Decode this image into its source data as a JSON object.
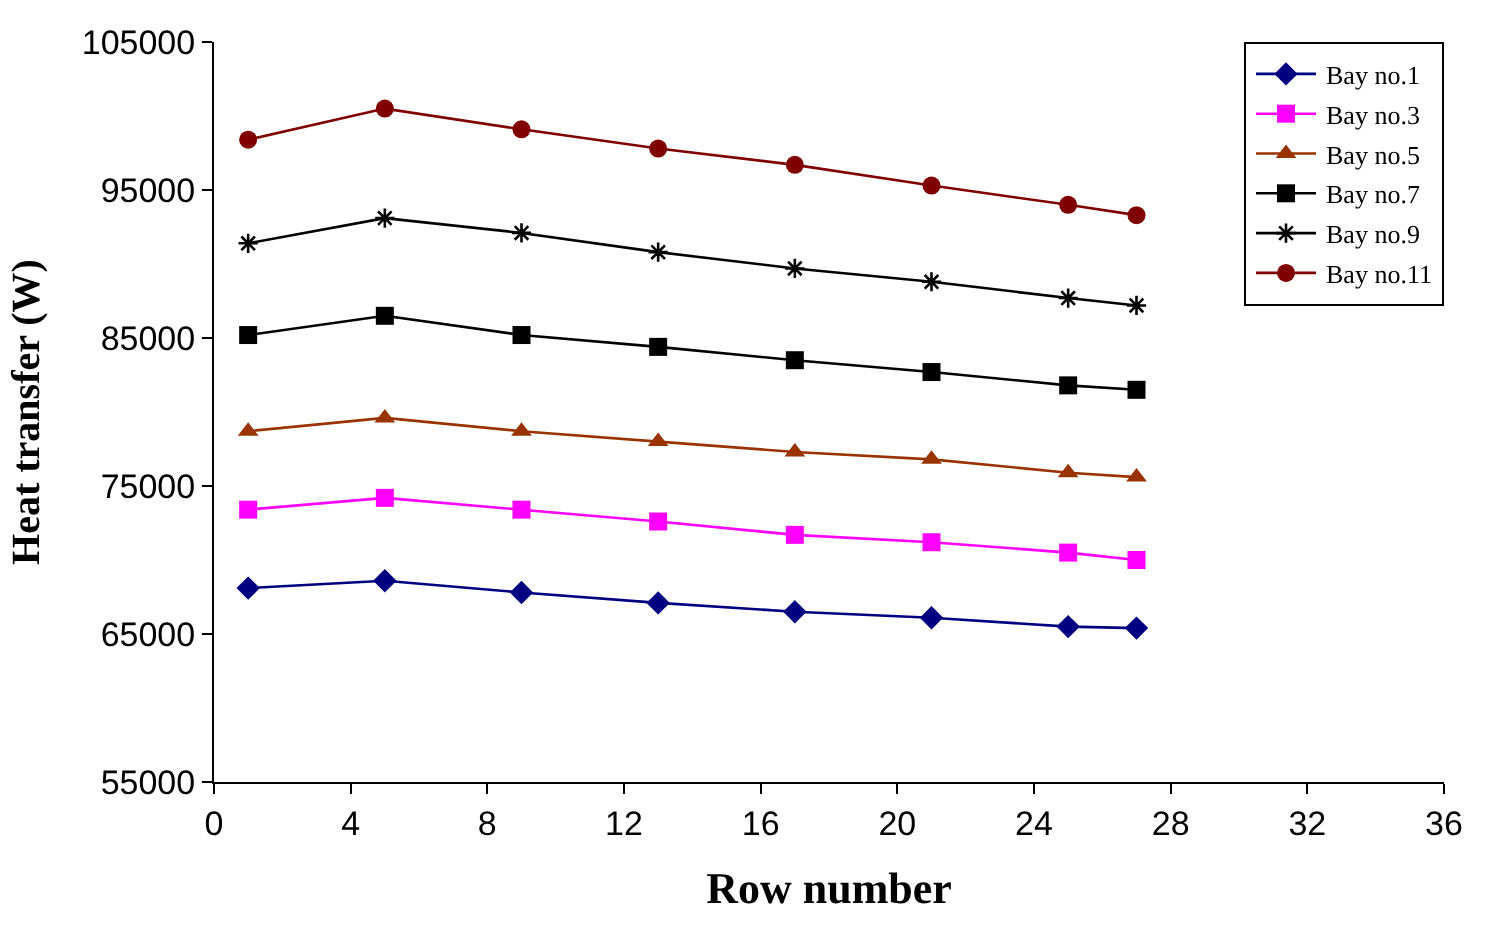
{
  "chart_data": {
    "type": "line",
    "xlabel": "Row number",
    "ylabel": "Heat transfer (W)",
    "x": [
      1,
      5,
      9,
      13,
      17,
      21,
      25,
      27
    ],
    "xlim": [
      0,
      36
    ],
    "xticks": [
      0,
      4,
      8,
      12,
      16,
      20,
      24,
      28,
      32,
      36
    ],
    "ylim": [
      55000,
      105000
    ],
    "yticks": [
      55000,
      65000,
      75000,
      85000,
      95000,
      105000
    ],
    "grid": false,
    "legend": "top right",
    "line_style": "solid",
    "series": [
      {
        "name": "Bay no.1",
        "color": "#000080",
        "marker": "diamond",
        "values": [
          68100,
          68600,
          67800,
          67100,
          66500,
          66100,
          65500,
          65400
        ]
      },
      {
        "name": "Bay no.3",
        "color": "#ff00ff",
        "marker": "square",
        "values": [
          73400,
          74200,
          73400,
          72600,
          71700,
          71200,
          70500,
          70000
        ]
      },
      {
        "name": "Bay no.5",
        "color": "#993300",
        "marker": "triangle",
        "values": [
          78700,
          79600,
          78700,
          78000,
          77300,
          76800,
          75900,
          75600
        ]
      },
      {
        "name": "Bay no.7",
        "color": "#000000",
        "marker": "square",
        "values": [
          85200,
          86500,
          85200,
          84400,
          83500,
          82700,
          81800,
          81500
        ]
      },
      {
        "name": "Bay no.9",
        "color": "#000000",
        "marker": "cross",
        "values": [
          91400,
          93100,
          92100,
          90800,
          89700,
          88800,
          87700,
          87200
        ]
      },
      {
        "name": "Bay no.11",
        "color": "#800000",
        "marker": "circle",
        "values": [
          98400,
          100500,
          99100,
          97800,
          96700,
          95300,
          94000,
          93300
        ]
      }
    ]
  }
}
